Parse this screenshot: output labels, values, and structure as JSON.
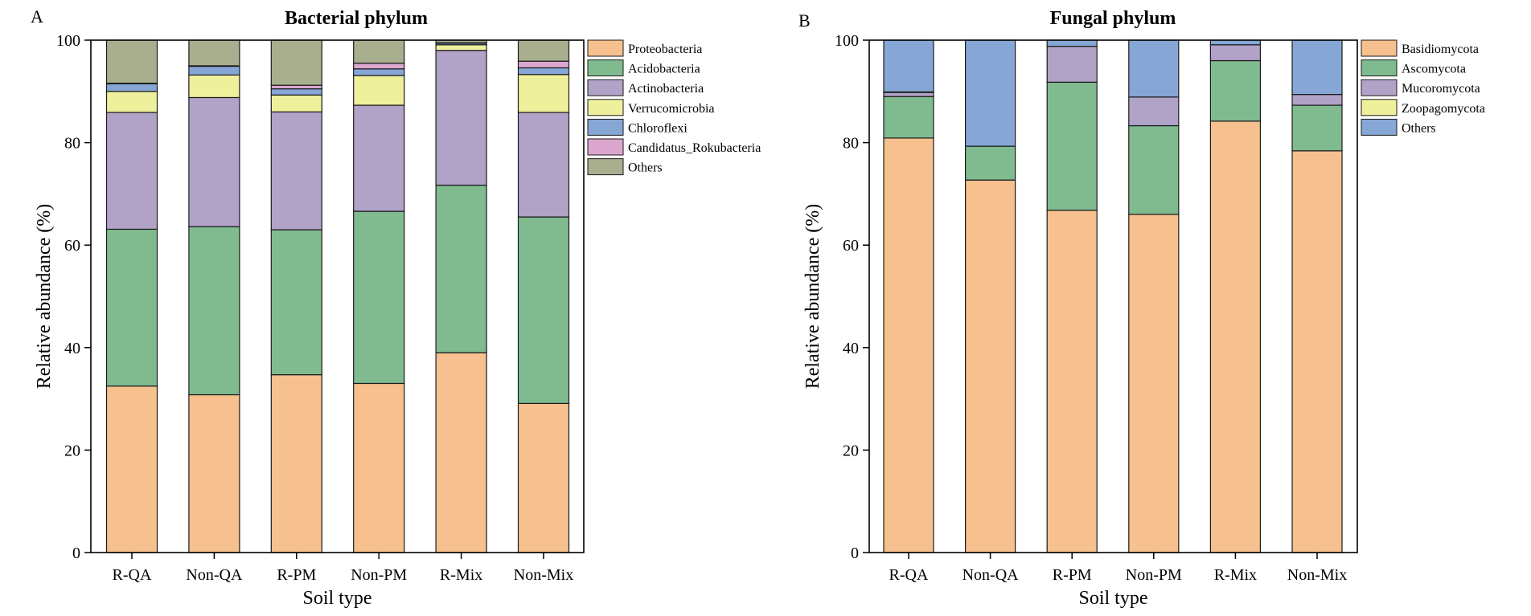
{
  "chart_data": [
    {
      "type": "bar",
      "stacked": true,
      "panel_label": "A",
      "title": "Bacterial phylum",
      "xlabel": "Soil type",
      "ylabel": "Relative abundance (%)",
      "ylim": [
        0,
        100
      ],
      "yticks": [
        0,
        20,
        40,
        60,
        80,
        100
      ],
      "legend_position": "right",
      "categories": [
        "R-QA",
        "Non-QA",
        "R-PM",
        "Non-PM",
        "R-Mix",
        "Non-Mix"
      ],
      "series": [
        {
          "name": "Proteobacteria",
          "color": "#f6c08f",
          "values": [
            32.5,
            30.8,
            34.7,
            33.0,
            39.0,
            29.1
          ]
        },
        {
          "name": "Acidobacteria",
          "color": "#80bb90",
          "values": [
            30.6,
            32.8,
            28.3,
            33.6,
            32.7,
            36.4
          ]
        },
        {
          "name": "Actinobacteria",
          "color": "#b1a2c8",
          "values": [
            22.8,
            25.2,
            23.0,
            20.7,
            26.3,
            20.4
          ]
        },
        {
          "name": "Verrucomicrobia",
          "color": "#eff09c",
          "values": [
            4.1,
            4.4,
            3.3,
            5.8,
            1.1,
            7.4
          ]
        },
        {
          "name": "Chloroflexi",
          "color": "#86a6d6",
          "values": [
            1.5,
            1.7,
            1.2,
            1.3,
            0.3,
            1.3
          ]
        },
        {
          "name": "Candidatus_Rokubacteria",
          "color": "#dca7cf",
          "values": [
            0.1,
            0.1,
            0.7,
            1.1,
            0.1,
            1.3
          ]
        },
        {
          "name": "Others",
          "color": "#a9ae8e",
          "values": [
            8.4,
            5.0,
            8.8,
            4.5,
            0.5,
            4.1
          ]
        }
      ]
    },
    {
      "type": "bar",
      "stacked": true,
      "panel_label": "B",
      "title": "Fungal phylum",
      "xlabel": "Soil type",
      "ylabel": "Relative abundance (%)",
      "ylim": [
        0,
        100
      ],
      "yticks": [
        0,
        20,
        40,
        60,
        80,
        100
      ],
      "legend_position": "right",
      "categories": [
        "R-QA",
        "Non-QA",
        "R-PM",
        "Non-PM",
        "R-Mix",
        "Non-Mix"
      ],
      "series": [
        {
          "name": "Basidiomycota",
          "color": "#f6c08f",
          "values": [
            80.9,
            72.7,
            66.8,
            66.0,
            84.2,
            78.4
          ]
        },
        {
          "name": "Ascomycota",
          "color": "#80bb90",
          "values": [
            8.1,
            6.6,
            25.0,
            17.3,
            11.8,
            8.9
          ]
        },
        {
          "name": "Mucoromycota",
          "color": "#b1a2c8",
          "values": [
            0.8,
            0.0,
            7.0,
            5.6,
            3.1,
            2.1
          ]
        },
        {
          "name": "Zoopagomycota",
          "color": "#eff09c",
          "values": [
            0.1,
            0.0,
            0.0,
            0.0,
            0.0,
            0.0
          ]
        },
        {
          "name": "Others",
          "color": "#86a6d6",
          "values": [
            10.1,
            20.7,
            1.2,
            11.1,
            0.9,
            10.6
          ]
        }
      ]
    }
  ]
}
